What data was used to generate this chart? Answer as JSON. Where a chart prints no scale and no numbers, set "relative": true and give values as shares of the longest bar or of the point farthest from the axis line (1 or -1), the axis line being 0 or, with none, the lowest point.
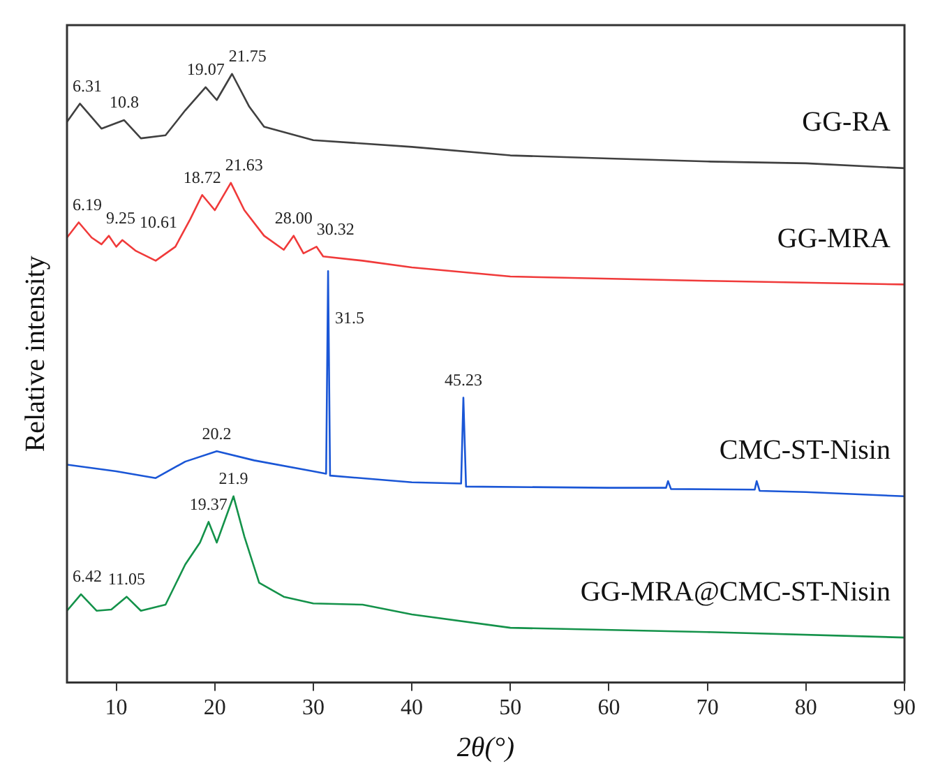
{
  "chart_data": {
    "type": "line",
    "relative": true,
    "xlabel": "2θ(°)",
    "ylabel": "Relative intensity",
    "xlim": [
      5,
      90
    ],
    "xticks": [
      10,
      20,
      30,
      40,
      50,
      60,
      70,
      80,
      90
    ],
    "grid": false,
    "legend": false,
    "marker": "none",
    "line_style": "solid",
    "series": [
      {
        "name": "GG-RA",
        "color": "#404040",
        "x": [
          5,
          6.31,
          8.5,
          10.8,
          12.5,
          15,
          17,
          19.07,
          20.2,
          21.75,
          23.5,
          25,
          30,
          40,
          50,
          60,
          70,
          80,
          90
        ],
        "values": [
          0.921,
          0.951,
          0.91,
          0.924,
          0.894,
          0.899,
          0.94,
          0.978,
          0.957,
          1.0,
          0.946,
          0.913,
          0.891,
          0.88,
          0.866,
          0.861,
          0.856,
          0.853,
          0.845
        ]
      },
      {
        "name": "GG-MRA",
        "color": "#f03a3a",
        "x": [
          5,
          6.19,
          7.5,
          8.5,
          9.25,
          10,
          10.61,
          12,
          14,
          16,
          17.5,
          18.72,
          20,
          21.63,
          23,
          25,
          27,
          28,
          29,
          30.32,
          31,
          35,
          40,
          50,
          70,
          90
        ],
        "values": [
          0.731,
          0.756,
          0.731,
          0.72,
          0.734,
          0.716,
          0.727,
          0.709,
          0.693,
          0.716,
          0.761,
          0.801,
          0.776,
          0.821,
          0.776,
          0.734,
          0.711,
          0.734,
          0.705,
          0.716,
          0.7,
          0.693,
          0.682,
          0.667,
          0.66,
          0.654
        ]
      },
      {
        "name": "CMC-ST-Nisin",
        "color": "#1a56d6",
        "x": [
          5,
          10,
          14,
          17,
          20.2,
          24,
          30,
          31.3,
          31.5,
          31.7,
          40,
          45,
          45.23,
          45.5,
          60,
          65.8,
          66,
          66.3,
          74.8,
          75,
          75.3,
          80,
          90
        ],
        "values": [
          0.358,
          0.347,
          0.336,
          0.363,
          0.38,
          0.365,
          0.347,
          0.343,
          0.676,
          0.34,
          0.329,
          0.327,
          0.468,
          0.322,
          0.32,
          0.32,
          0.331,
          0.318,
          0.317,
          0.331,
          0.315,
          0.313,
          0.306
        ]
      },
      {
        "name": "GG-MRA@CMC-ST-Nisin",
        "color": "#14924a",
        "x": [
          5,
          6.42,
          8,
          9.5,
          11.05,
          12.5,
          15,
          17,
          18.5,
          19.37,
          20.2,
          21.9,
          23,
          24.5,
          27,
          30,
          35,
          40,
          50,
          70,
          90
        ],
        "values": [
          0.118,
          0.145,
          0.118,
          0.12,
          0.141,
          0.118,
          0.128,
          0.194,
          0.23,
          0.264,
          0.23,
          0.306,
          0.24,
          0.164,
          0.141,
          0.13,
          0.128,
          0.112,
          0.09,
          0.083,
          0.074
        ]
      }
    ],
    "annotations": [
      {
        "text": "6.31",
        "x": 6.31,
        "y": 0.951
      },
      {
        "text": "10.8",
        "x": 10.8,
        "y": 0.924
      },
      {
        "text": "19.07",
        "x": 19.07,
        "y": 0.978
      },
      {
        "text": "21.75",
        "x": 21.75,
        "y": 1.0
      },
      {
        "text": "6.19",
        "x": 6.19,
        "y": 0.756
      },
      {
        "text": "9.25",
        "x": 9.25,
        "y": 0.734
      },
      {
        "text": "10.61",
        "x": 10.61,
        "y": 0.727
      },
      {
        "text": "18.72",
        "x": 18.72,
        "y": 0.801
      },
      {
        "text": "21.63",
        "x": 21.63,
        "y": 0.821
      },
      {
        "text": "28.00",
        "x": 28,
        "y": 0.734
      },
      {
        "text": "30.32",
        "x": 30.32,
        "y": 0.716
      },
      {
        "text": "31.5",
        "x": 31.5,
        "y": 0.676
      },
      {
        "text": "45.23",
        "x": 45.23,
        "y": 0.468
      },
      {
        "text": "20.2",
        "x": 20.2,
        "y": 0.38
      },
      {
        "text": "6.42",
        "x": 6.42,
        "y": 0.145
      },
      {
        "text": "11.05",
        "x": 11.05,
        "y": 0.141
      },
      {
        "text": "19.37",
        "x": 19.37,
        "y": 0.264
      },
      {
        "text": "21.9",
        "x": 21.9,
        "y": 0.306
      }
    ]
  }
}
